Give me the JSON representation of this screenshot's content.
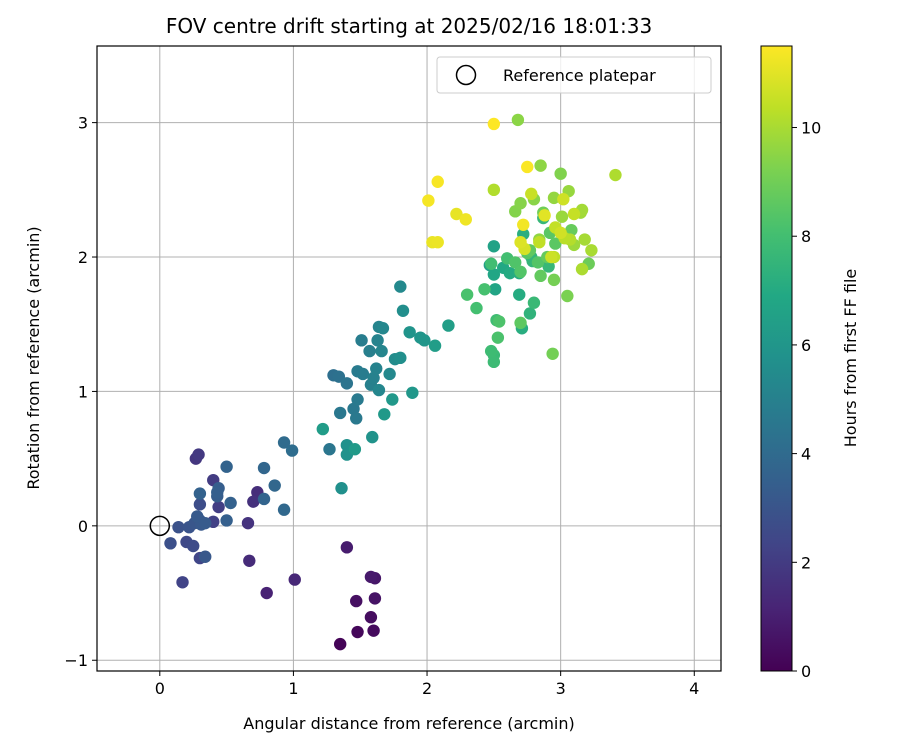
{
  "chart_data": {
    "type": "scatter",
    "title": "FOV centre drift starting at 2025/02/16 18:01:33",
    "xlabel": "Angular distance from reference (arcmin)",
    "ylabel": "Rotation from reference (arcmin)",
    "xlim": [
      -0.47,
      4.2
    ],
    "ylim": [
      -1.08,
      3.57
    ],
    "xticks": [
      "0",
      "1",
      "2",
      "3",
      "4"
    ],
    "yticks": [
      "−1",
      "0",
      "1",
      "2",
      "3"
    ],
    "grid": true,
    "legend": {
      "placement": "top-right",
      "label": "Reference platepar",
      "marker": "open-circle"
    },
    "reference_point": {
      "x": 0,
      "y": 0
    },
    "colorbar": {
      "label": "Hours from first FF file",
      "colormap": "viridis",
      "range": [
        0,
        11.5
      ],
      "ticks": [
        "0",
        "2",
        "4",
        "6",
        "8",
        "10"
      ]
    },
    "points": [
      [
        1.35,
        -0.88,
        0.1
      ],
      [
        1.48,
        -0.79,
        0.2
      ],
      [
        1.6,
        -0.78,
        0.3
      ],
      [
        1.58,
        -0.68,
        0.4
      ],
      [
        1.47,
        -0.56,
        0.5
      ],
      [
        1.61,
        -0.54,
        0.6
      ],
      [
        1.61,
        -0.39,
        0.7
      ],
      [
        1.58,
        -0.38,
        0.8
      ],
      [
        1.4,
        -0.16,
        0.9
      ],
      [
        0.8,
        -0.5,
        1.1
      ],
      [
        1.01,
        -0.4,
        1.3
      ],
      [
        0.67,
        -0.26,
        1.4
      ],
      [
        0.73,
        0.25,
        1.5
      ],
      [
        0.7,
        0.18,
        1.6
      ],
      [
        0.66,
        0.02,
        1.7
      ],
      [
        0.27,
        0.5,
        1.8
      ],
      [
        0.29,
        0.53,
        1.9
      ],
      [
        0.4,
        0.34,
        2.0
      ],
      [
        0.44,
        0.14,
        2.1
      ],
      [
        0.4,
        0.03,
        2.2
      ],
      [
        0.17,
        -0.42,
        2.3
      ],
      [
        0.3,
        -0.24,
        2.4
      ],
      [
        0.2,
        -0.12,
        2.5
      ],
      [
        0.25,
        -0.15,
        2.6
      ],
      [
        0.3,
        0.16,
        2.7
      ],
      [
        0.08,
        -0.13,
        2.8
      ],
      [
        0.14,
        -0.01,
        2.9
      ],
      [
        0.22,
        -0.01,
        3.0
      ],
      [
        0.26,
        0.02,
        3.05
      ],
      [
        0.3,
        0.04,
        3.1
      ],
      [
        0.34,
        -0.23,
        3.15
      ],
      [
        0.31,
        0.01,
        3.2
      ],
      [
        0.28,
        0.07,
        3.25
      ],
      [
        0.34,
        0.02,
        3.3
      ],
      [
        0.43,
        0.22,
        3.35
      ],
      [
        0.44,
        0.28,
        3.4
      ],
      [
        0.43,
        0.25,
        3.45
      ],
      [
        0.5,
        0.04,
        3.5
      ],
      [
        0.53,
        0.17,
        3.55
      ],
      [
        0.3,
        0.24,
        3.6
      ],
      [
        0.5,
        0.44,
        3.65
      ],
      [
        0.78,
        0.2,
        3.7
      ],
      [
        0.78,
        0.43,
        3.75
      ],
      [
        0.86,
        0.3,
        3.8
      ],
      [
        0.93,
        0.12,
        3.85
      ],
      [
        0.93,
        0.62,
        4.0
      ],
      [
        0.99,
        0.56,
        4.1
      ],
      [
        1.3,
        1.12,
        4.2
      ],
      [
        1.34,
        1.11,
        4.3
      ],
      [
        1.4,
        1.06,
        4.4
      ],
      [
        1.27,
        0.57,
        4.5
      ],
      [
        1.35,
        0.84,
        4.55
      ],
      [
        1.45,
        0.87,
        4.6
      ],
      [
        1.47,
        0.8,
        4.65
      ],
      [
        1.48,
        0.94,
        4.7
      ],
      [
        1.48,
        1.15,
        4.75
      ],
      [
        1.52,
        1.13,
        4.8
      ],
      [
        1.51,
        1.38,
        4.85
      ],
      [
        1.57,
        1.3,
        4.9
      ],
      [
        1.58,
        1.05,
        4.95
      ],
      [
        1.6,
        1.1,
        5.0
      ],
      [
        1.62,
        1.17,
        5.05
      ],
      [
        1.63,
        1.38,
        5.1
      ],
      [
        1.64,
        1.48,
        5.15
      ],
      [
        1.66,
        1.3,
        5.2
      ],
      [
        1.64,
        1.01,
        5.25
      ],
      [
        1.67,
        1.47,
        5.3
      ],
      [
        1.72,
        1.13,
        5.35
      ],
      [
        1.8,
        1.78,
        5.4
      ],
      [
        1.76,
        1.24,
        5.5
      ],
      [
        1.82,
        1.6,
        5.6
      ],
      [
        1.8,
        1.25,
        5.65
      ],
      [
        1.36,
        0.28,
        5.7
      ],
      [
        1.4,
        0.6,
        5.75
      ],
      [
        1.4,
        0.53,
        5.8
      ],
      [
        1.59,
        0.66,
        5.85
      ],
      [
        1.87,
        1.44,
        5.9
      ],
      [
        1.95,
        1.4,
        5.95
      ],
      [
        1.98,
        1.38,
        6.0
      ],
      [
        1.89,
        0.99,
        6.05
      ],
      [
        1.74,
        0.94,
        6.1
      ],
      [
        1.68,
        0.83,
        6.15
      ],
      [
        1.46,
        0.57,
        6.2
      ],
      [
        1.22,
        0.72,
        6.3
      ],
      [
        2.06,
        1.34,
        6.35
      ],
      [
        2.16,
        1.49,
        6.4
      ],
      [
        2.47,
        1.94,
        6.5
      ],
      [
        2.5,
        2.08,
        6.6
      ],
      [
        2.51,
        1.76,
        6.7
      ],
      [
        2.5,
        1.87,
        6.8
      ],
      [
        2.57,
        1.92,
        6.9
      ],
      [
        2.62,
        1.88,
        7.0
      ],
      [
        2.69,
        1.72,
        7.05
      ],
      [
        2.69,
        1.88,
        7.1
      ],
      [
        2.71,
        1.47,
        7.15
      ],
      [
        2.72,
        2.17,
        7.2
      ],
      [
        2.74,
        2.05,
        7.3
      ],
      [
        2.77,
        1.58,
        7.4
      ],
      [
        2.78,
        2.0,
        7.5
      ],
      [
        2.79,
        1.97,
        7.55
      ],
      [
        2.87,
        2.29,
        7.6
      ],
      [
        2.91,
        1.93,
        7.65
      ],
      [
        2.8,
        1.66,
        7.7
      ],
      [
        2.5,
        1.27,
        7.75
      ],
      [
        2.5,
        1.22,
        7.8
      ],
      [
        2.48,
        1.3,
        7.85
      ],
      [
        2.52,
        1.53,
        7.9
      ],
      [
        2.48,
        1.95,
        7.95
      ],
      [
        2.6,
        1.99,
        8.0
      ],
      [
        2.37,
        1.62,
        8.05
      ],
      [
        2.43,
        1.76,
        8.1
      ],
      [
        2.3,
        1.72,
        8.15
      ],
      [
        2.53,
        1.4,
        8.2
      ],
      [
        2.54,
        1.52,
        8.25
      ],
      [
        2.66,
        1.96,
        8.3
      ],
      [
        2.7,
        1.89,
        8.35
      ],
      [
        2.83,
        1.96,
        8.4
      ],
      [
        2.75,
        2.03,
        8.45
      ],
      [
        2.92,
        2.18,
        8.5
      ],
      [
        2.96,
        2.1,
        8.55
      ],
      [
        2.7,
        1.51,
        8.6
      ],
      [
        2.77,
        2.05,
        8.65
      ],
      [
        2.85,
        1.86,
        8.7
      ],
      [
        2.9,
        2.0,
        8.75
      ],
      [
        3.08,
        2.2,
        8.8
      ],
      [
        3.21,
        1.95,
        8.9
      ],
      [
        2.87,
        2.33,
        9.0
      ],
      [
        2.94,
        1.28,
        9.05
      ],
      [
        2.95,
        1.83,
        9.1
      ],
      [
        3.05,
        1.71,
        9.2
      ],
      [
        3.0,
        2.62,
        9.3
      ],
      [
        2.66,
        2.34,
        9.35
      ],
      [
        2.7,
        2.4,
        9.4
      ],
      [
        2.8,
        2.43,
        9.45
      ],
      [
        2.68,
        3.02,
        9.5
      ],
      [
        2.85,
        2.68,
        9.55
      ],
      [
        2.84,
        2.13,
        9.6
      ],
      [
        2.95,
        2.44,
        9.65
      ],
      [
        3.06,
        2.49,
        9.7
      ],
      [
        3.01,
        2.3,
        9.75
      ],
      [
        3.1,
        2.09,
        9.8
      ],
      [
        3.15,
        2.33,
        9.85
      ],
      [
        3.16,
        2.35,
        9.9
      ],
      [
        3.18,
        2.13,
        9.95
      ],
      [
        3.23,
        2.05,
        10.0
      ],
      [
        3.16,
        1.91,
        10.05
      ],
      [
        3.41,
        2.61,
        10.1
      ],
      [
        2.5,
        2.5,
        10.15
      ],
      [
        3.07,
        2.13,
        10.2
      ],
      [
        3.03,
        2.14,
        10.3
      ],
      [
        2.95,
        2.0,
        10.35
      ],
      [
        2.84,
        2.11,
        10.4
      ],
      [
        2.96,
        2.22,
        10.45
      ],
      [
        3.1,
        2.32,
        10.5
      ],
      [
        2.78,
        2.47,
        10.55
      ],
      [
        2.93,
        2.0,
        10.6
      ],
      [
        3.02,
        2.43,
        10.65
      ],
      [
        3.0,
        2.18,
        10.7
      ],
      [
        2.73,
        2.06,
        10.8
      ],
      [
        2.7,
        2.11,
        10.9
      ],
      [
        2.88,
        2.31,
        11.0
      ],
      [
        2.22,
        2.32,
        11.1
      ],
      [
        2.04,
        2.11,
        11.15
      ],
      [
        2.08,
        2.11,
        11.2
      ],
      [
        2.29,
        2.28,
        11.25
      ],
      [
        2.72,
        2.24,
        11.3
      ],
      [
        2.01,
        2.42,
        11.35
      ],
      [
        2.08,
        2.56,
        11.4
      ],
      [
        2.75,
        2.67,
        11.45
      ],
      [
        2.5,
        2.99,
        11.5
      ]
    ]
  }
}
